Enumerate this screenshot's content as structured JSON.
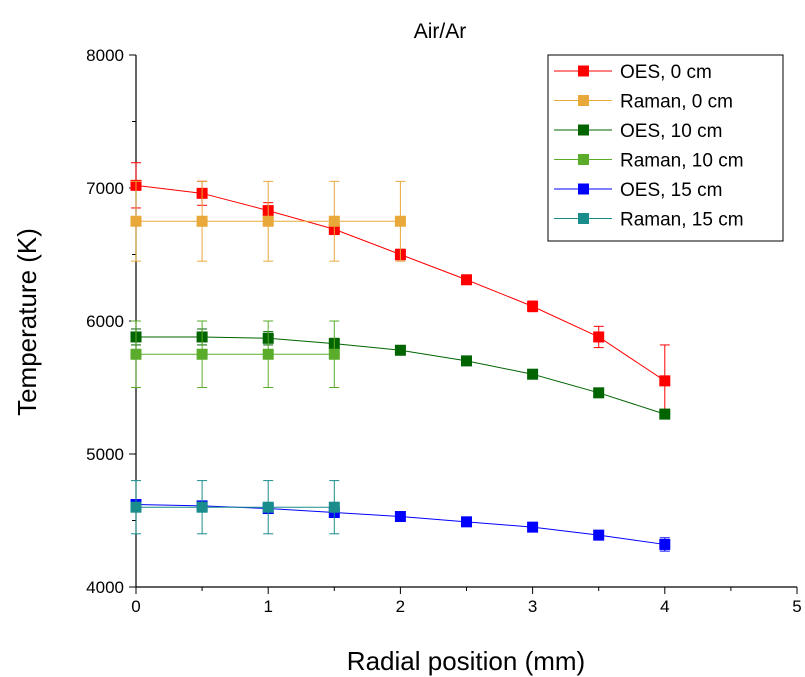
{
  "chart_data": {
    "type": "line",
    "title": "Air/Ar",
    "xlabel": "Radial position (mm)",
    "ylabel": "Temperature (K)",
    "xlim": [
      0,
      5
    ],
    "ylim": [
      4000,
      8000
    ],
    "x_ticks": [
      "0",
      "1",
      "2",
      "3",
      "4",
      "5"
    ],
    "y_ticks": [
      "4000",
      "5000",
      "6000",
      "7000",
      "8000"
    ],
    "grid": false,
    "legend_position": "top-right",
    "series": [
      {
        "name": "OES, 0 cm",
        "color": "#ff0000",
        "x": [
          0,
          0.5,
          1,
          1.5,
          2,
          2.5,
          3,
          3.5,
          4
        ],
        "y": [
          7020,
          6960,
          6830,
          6690,
          6500,
          6310,
          6110,
          5880,
          5550
        ],
        "error": [
          170,
          90,
          60,
          40,
          40,
          30,
          40,
          80,
          270
        ]
      },
      {
        "name": "Raman, 0 cm",
        "color": "#e8a93a",
        "x": [
          0,
          0.5,
          1,
          1.5,
          2
        ],
        "y": [
          6750,
          6750,
          6750,
          6750,
          6750
        ],
        "error": [
          300,
          300,
          300,
          300,
          300
        ]
      },
      {
        "name": "OES, 10 cm",
        "color": "#006400",
        "x": [
          0,
          0.5,
          1,
          1.5,
          2,
          2.5,
          3,
          3.5,
          4
        ],
        "y": [
          5880,
          5880,
          5870,
          5830,
          5780,
          5700,
          5600,
          5460,
          5300
        ],
        "error": [
          60,
          60,
          50,
          40,
          30,
          30,
          30,
          30,
          30
        ]
      },
      {
        "name": "Raman, 10 cm",
        "color": "#5aac2a",
        "x": [
          0,
          0.5,
          1,
          1.5
        ],
        "y": [
          5750,
          5750,
          5750,
          5750
        ],
        "error": [
          250,
          250,
          250,
          250
        ]
      },
      {
        "name": "OES, 15 cm",
        "color": "#0000ff",
        "x": [
          0,
          0.5,
          1,
          1.5,
          2,
          2.5,
          3,
          3.5,
          4
        ],
        "y": [
          4620,
          4610,
          4590,
          4560,
          4530,
          4490,
          4450,
          4390,
          4320
        ],
        "error": [
          20,
          20,
          20,
          20,
          20,
          20,
          20,
          20,
          50
        ]
      },
      {
        "name": "Raman, 15 cm",
        "color": "#1a8c8c",
        "x": [
          0,
          0.5,
          1,
          1.5
        ],
        "y": [
          4600,
          4600,
          4600,
          4600
        ],
        "error": [
          200,
          200,
          200,
          200
        ]
      }
    ]
  }
}
